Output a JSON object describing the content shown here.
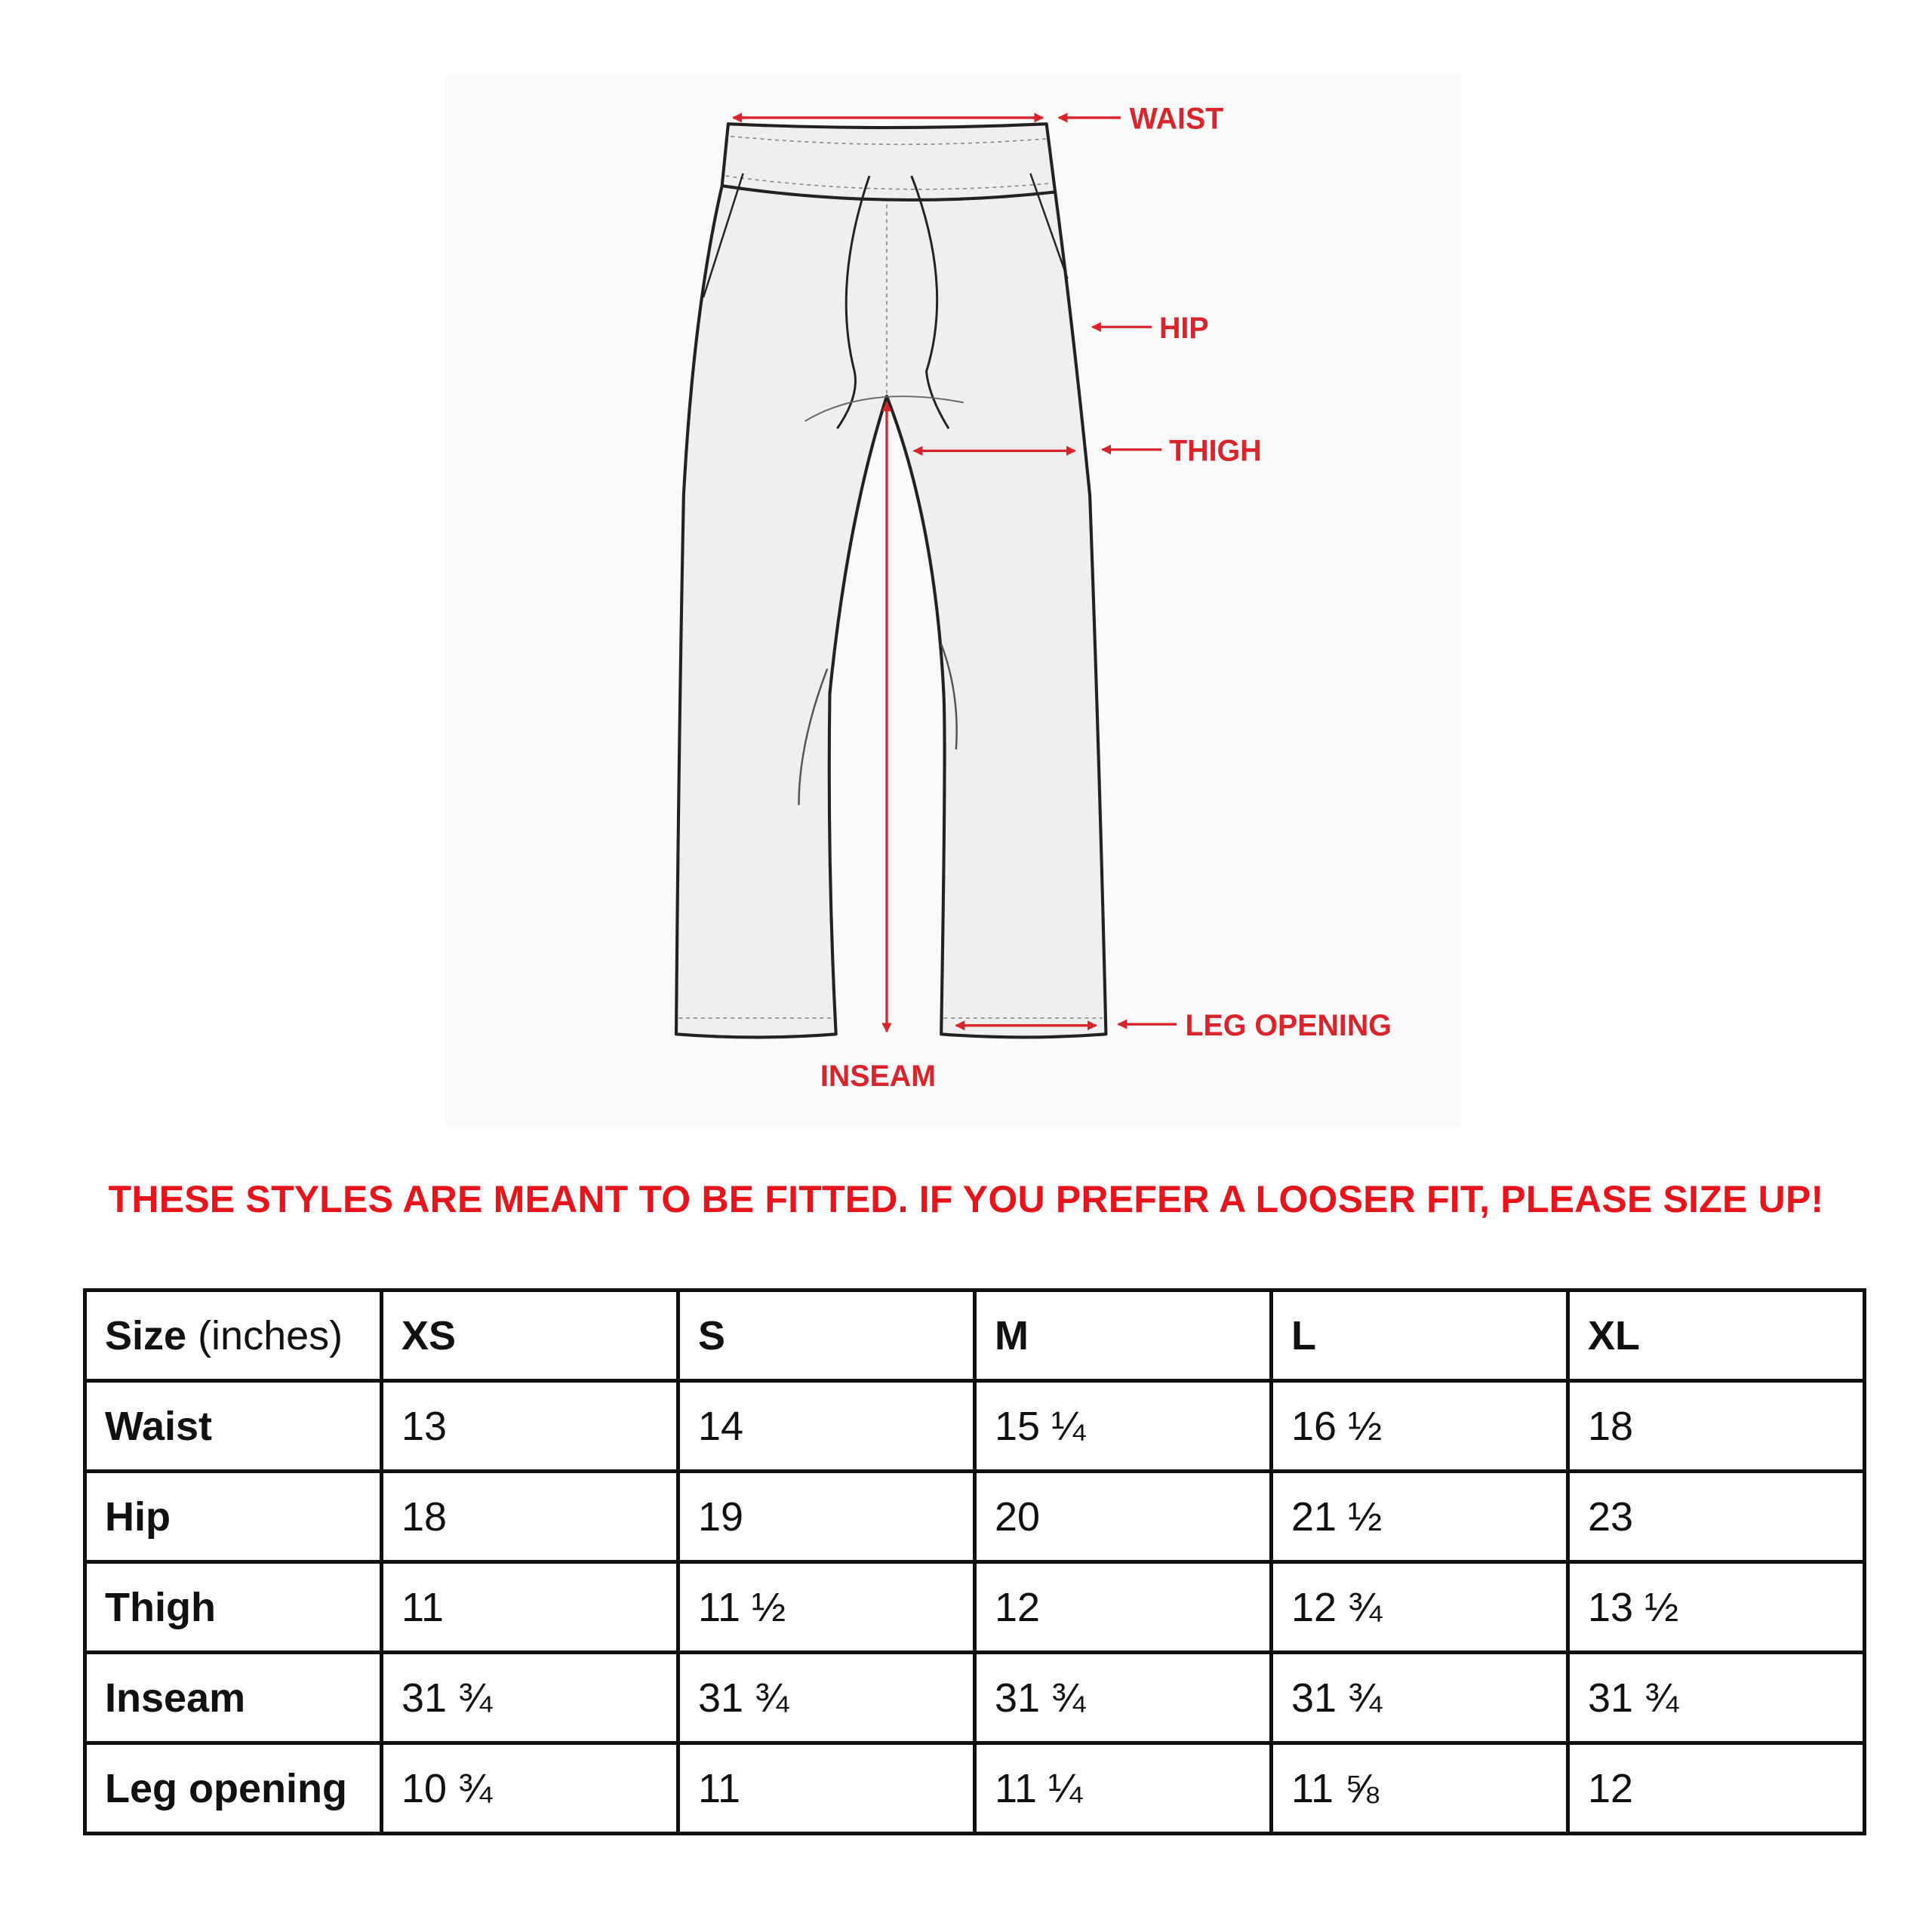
{
  "diagram": {
    "labels": {
      "waist": "WAIST",
      "hip": "HIP",
      "thigh": "THIGH",
      "leg_opening": "LEG OPENING",
      "inseam": "INSEAM"
    },
    "colors": {
      "annotation": "#d9242b",
      "garment_fill": "#efefef",
      "outline": "#222222"
    }
  },
  "notice": "THESE STYLES ARE MEANT TO BE FITTED. IF YOU PREFER A LOOSER FIT, PLEASE SIZE UP!",
  "notice_color": "#e8141c",
  "table": {
    "header": {
      "label_bold": "Size",
      "label_unit": "(inches)",
      "sizes": [
        "XS",
        "S",
        "M",
        "L",
        "XL"
      ]
    },
    "rows": [
      {
        "label": "Waist",
        "values": [
          "13",
          "14",
          "15 ¼",
          "16 ½",
          "18"
        ]
      },
      {
        "label": "Hip",
        "values": [
          "18",
          "19",
          "20",
          "21 ½",
          "23"
        ]
      },
      {
        "label": "Thigh",
        "values": [
          "11",
          "11 ½",
          "12",
          "12 ¾",
          "13 ½"
        ]
      },
      {
        "label": "Inseam",
        "values": [
          "31 ¾",
          "31 ¾",
          "31 ¾",
          "31 ¾",
          "31 ¾"
        ]
      },
      {
        "label": "Leg opening",
        "values": [
          "10 ¾",
          "11",
          "11 ¼",
          "11 ⅝",
          "12"
        ]
      }
    ]
  }
}
